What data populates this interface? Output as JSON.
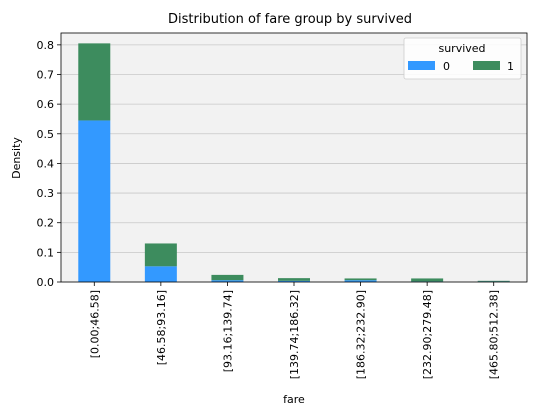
{
  "chart_data": {
    "type": "bar",
    "stacked": true,
    "title": "Distribution of fare group by survived",
    "xlabel": "fare",
    "ylabel": "Density",
    "categories": [
      "[0.00;46.58]",
      "[46.58;93.16]",
      "[93.16;139.74]",
      "[139.74;186.32]",
      "[186.32;232.90]",
      "[232.90;279.48]",
      "[465.80;512.38]"
    ],
    "series": [
      {
        "name": "0",
        "color": "#3399ff",
        "values": [
          0.545,
          0.053,
          0.006,
          0.004,
          0.006,
          0.002,
          0.002
        ]
      },
      {
        "name": "1",
        "color": "#3d8c5e",
        "values": [
          0.26,
          0.077,
          0.018,
          0.009,
          0.006,
          0.01,
          0.002
        ]
      }
    ],
    "ylim": [
      0,
      0.84
    ],
    "yticks": [
      0.0,
      0.1,
      0.2,
      0.3,
      0.4,
      0.5,
      0.6,
      0.7,
      0.8
    ],
    "grid": true,
    "legend": {
      "title": "survived",
      "position": "top-right",
      "columns": 2
    },
    "plot_background": "#f2f2f2",
    "grid_color": "#c8c8c8"
  }
}
